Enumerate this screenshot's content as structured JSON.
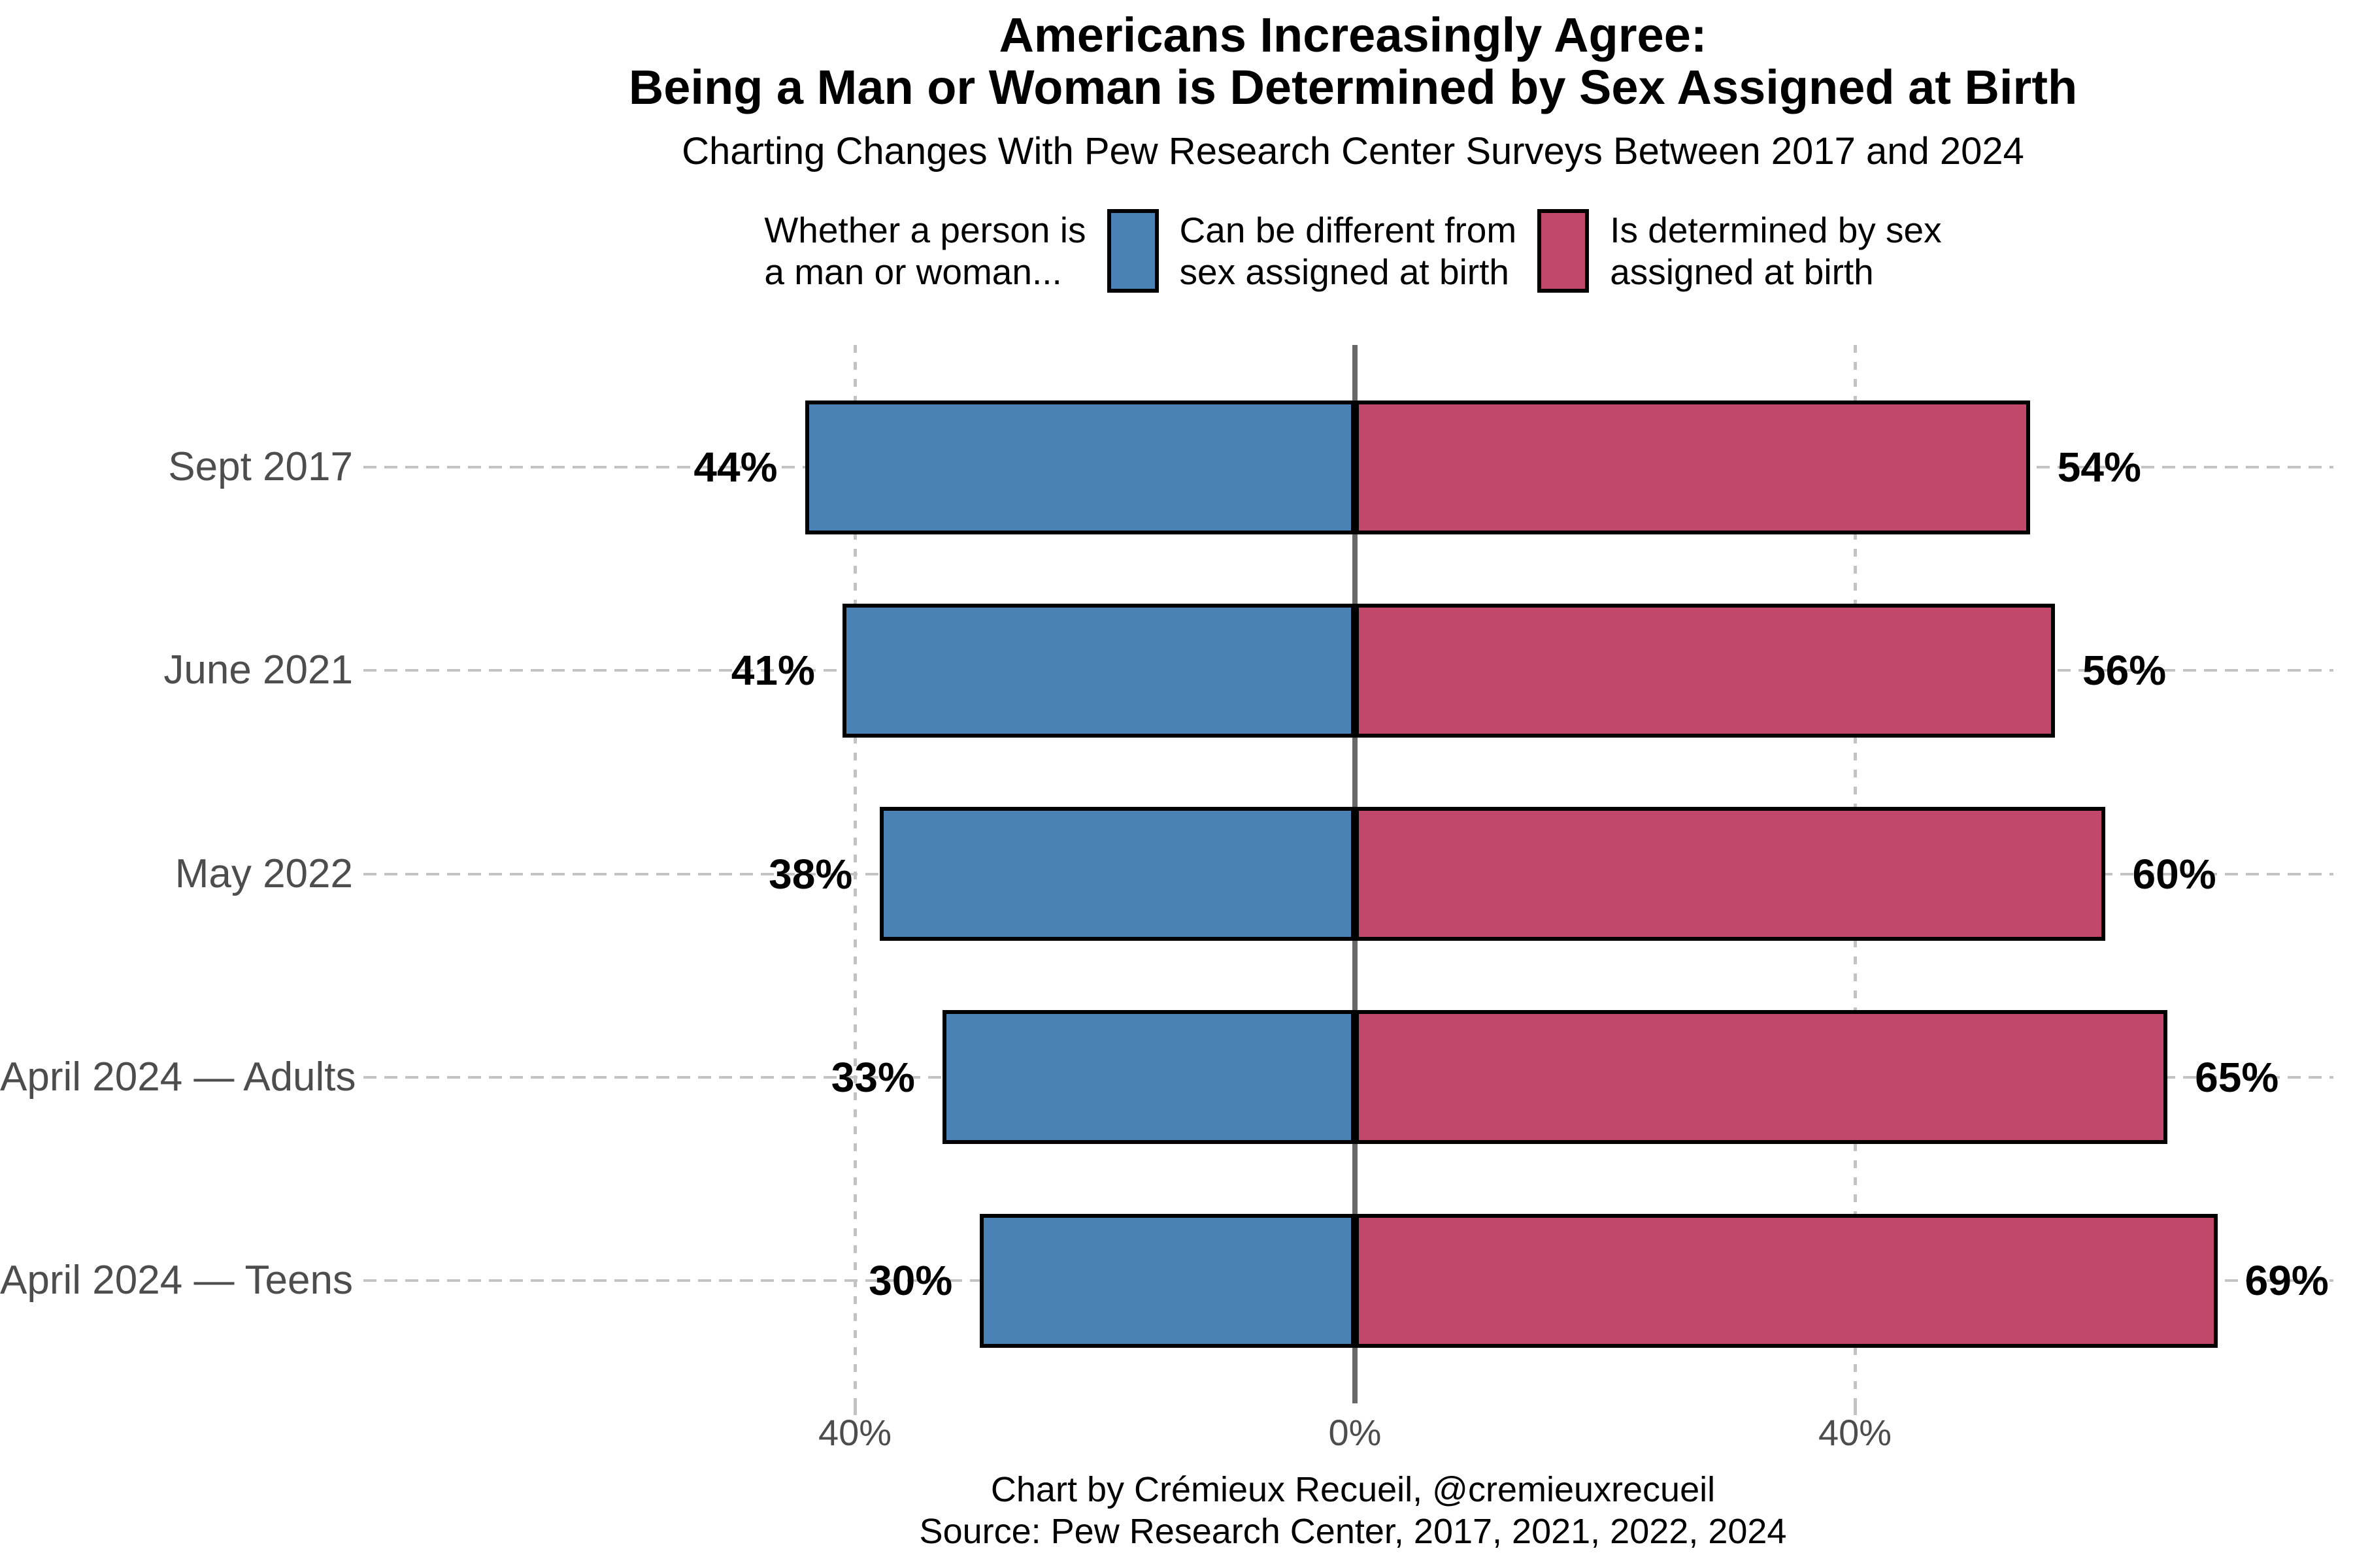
{
  "title": {
    "line1": "Americans Increasingly Agree:",
    "line2": "Being a Man or Woman is Determined by Sex Assigned at Birth"
  },
  "subtitle": "Charting Changes With Pew Research Center Surveys Between 2017 and 2024",
  "legend": {
    "prefix_line1": "Whether a person is",
    "prefix_line2": "a man or woman...",
    "items": [
      {
        "label_line1": "Can be different from",
        "label_line2": "sex assigned at birth",
        "color": "#4A82B5"
      },
      {
        "label_line1": "Is determined by sex",
        "label_line2": "assigned at birth",
        "color": "#C2486B"
      }
    ]
  },
  "chart_data": {
    "type": "bar",
    "variant": "diverging-horizontal",
    "title": "Americans Increasingly Agree: Being a Man or Woman is Determined by Sex Assigned at Birth",
    "categories": [
      "Sept 2017",
      "June 2021",
      "May 2022",
      "April 2024 — Adults",
      "April 2024 — Teens"
    ],
    "series": [
      {
        "name": "Can be different from sex assigned at birth",
        "side": "left",
        "color": "#4A82B5",
        "values": [
          44,
          41,
          38,
          33,
          30
        ]
      },
      {
        "name": "Is determined by sex assigned at birth",
        "side": "right",
        "color": "#C2486B",
        "values": [
          54,
          56,
          60,
          65,
          69
        ]
      }
    ],
    "value_labels": {
      "left": [
        "44%",
        "41%",
        "38%",
        "33%",
        "30%"
      ],
      "right": [
        "54%",
        "56%",
        "60%",
        "65%",
        "69%"
      ]
    },
    "x_axis": {
      "ticks": [
        "40%",
        "0%",
        "40%"
      ],
      "tick_values": [
        -40,
        0,
        40
      ],
      "gridlines_at": [
        -40,
        40
      ],
      "range": [
        -48,
        72
      ]
    },
    "grid": "dashed",
    "legend_position": "top",
    "ylabel": "",
    "xlabel": ""
  },
  "footer": {
    "line1": "Chart by Crémieux Recueil, @cremieuxrecueil",
    "line2": "Source: Pew Research Center, 2017, 2021, 2022, 2024"
  },
  "colors": {
    "left_bar": "#4A82B5",
    "right_bar": "#C2486B",
    "bar_border": "#000000",
    "zero_line": "#686868",
    "gridline": "#c3c3c3",
    "axis_text": "#4d4d4d",
    "background": "#ffffff"
  }
}
